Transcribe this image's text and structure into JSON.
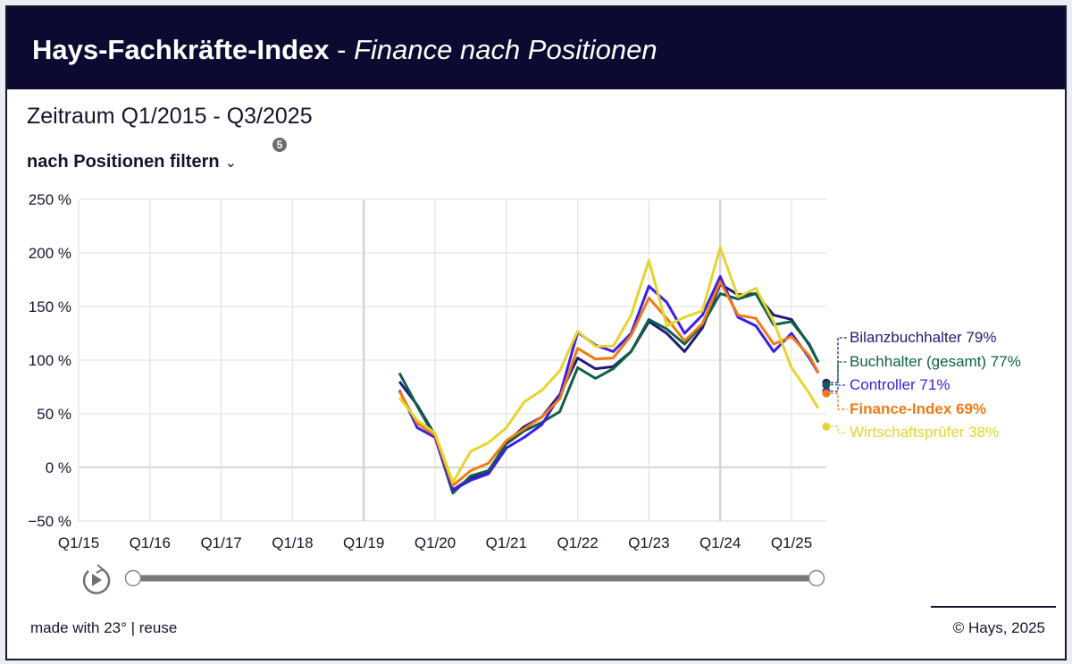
{
  "header": {
    "title_bold": "Hays-Fachkräfte-Index",
    "title_sep": " - ",
    "title_italic": "Finance nach Positionen"
  },
  "period": "Zeitraum Q1/2015 - Q3/2025",
  "filter": {
    "label": "nach Positionen filtern",
    "badge": "5"
  },
  "footer": {
    "left": "made with 23° | reuse",
    "right": "© Hays, 2025"
  },
  "slider": {
    "start": 0,
    "end": 1
  },
  "chart_data": {
    "type": "line",
    "ylim": [
      -50,
      250
    ],
    "yticks": [
      -50,
      0,
      50,
      100,
      150,
      200,
      250
    ],
    "ytick_labels": [
      "−50 %",
      "0 %",
      "50 %",
      "100 %",
      "150 %",
      "200 %",
      "250 %"
    ],
    "xtick_labels": [
      "Q1/15",
      "Q1/16",
      "Q1/17",
      "Q1/18",
      "Q1/19",
      "Q1/20",
      "Q1/21",
      "Q1/22",
      "Q1/23",
      "Q1/24",
      "Q1/25"
    ],
    "grid": true,
    "x": [
      "Q3/19",
      "Q4/19",
      "Q1/20",
      "Q2/20",
      "Q3/20",
      "Q4/20",
      "Q1/21",
      "Q2/21",
      "Q3/21",
      "Q4/21",
      "Q1/22",
      "Q2/22",
      "Q3/22",
      "Q4/22",
      "Q1/23",
      "Q2/23",
      "Q3/23",
      "Q4/23",
      "Q1/24",
      "Q2/24",
      "Q3/24",
      "Q4/24",
      "Q1/25",
      "Q2/25",
      "Q3/25"
    ],
    "series": [
      {
        "name": "Bilanzbuchhalter",
        "end_label": "Bilanzbuchhalter 79%",
        "color": "#1f1a78",
        "bold": false,
        "values": [
          80,
          58,
          30,
          -21,
          -10,
          -4,
          23,
          38,
          47,
          68,
          102,
          92,
          94,
          108,
          136,
          125,
          108,
          130,
          171,
          161,
          162,
          142,
          138,
          114,
          79
        ]
      },
      {
        "name": "Buchhalter (gesamt)",
        "end_label": "Buchhalter (gesamt) 77%",
        "color": "#0f6048",
        "bold": false,
        "values": [
          88,
          57,
          28,
          -24,
          -8,
          -3,
          22,
          34,
          42,
          52,
          93,
          83,
          92,
          108,
          138,
          129,
          115,
          133,
          162,
          157,
          162,
          133,
          136,
          115,
          77
        ]
      },
      {
        "name": "Controller",
        "end_label": "Controller 71%",
        "color": "#3a1ee6",
        "bold": false,
        "values": [
          72,
          37,
          28,
          -21,
          -12,
          -6,
          18,
          28,
          40,
          67,
          126,
          114,
          108,
          125,
          169,
          154,
          125,
          142,
          178,
          140,
          132,
          108,
          125,
          102,
          71
        ]
      },
      {
        "name": "Finance-Index",
        "end_label": "Finance-Index 69%",
        "color": "#f07a14",
        "bold": true,
        "values": [
          71,
          41,
          30,
          -17,
          -3,
          4,
          25,
          36,
          47,
          64,
          111,
          101,
          102,
          123,
          158,
          139,
          118,
          134,
          173,
          142,
          139,
          115,
          122,
          104,
          69
        ]
      },
      {
        "name": "Wirtschaftsprüfer",
        "end_label": "Wirtschaftsprüfer 38%",
        "color": "#e6d42e",
        "bold": false,
        "values": [
          65,
          44,
          32,
          -14,
          15,
          23,
          37,
          61,
          72,
          90,
          127,
          113,
          113,
          142,
          193,
          132,
          140,
          146,
          205,
          159,
          167,
          136,
          93,
          69,
          38
        ]
      }
    ]
  }
}
